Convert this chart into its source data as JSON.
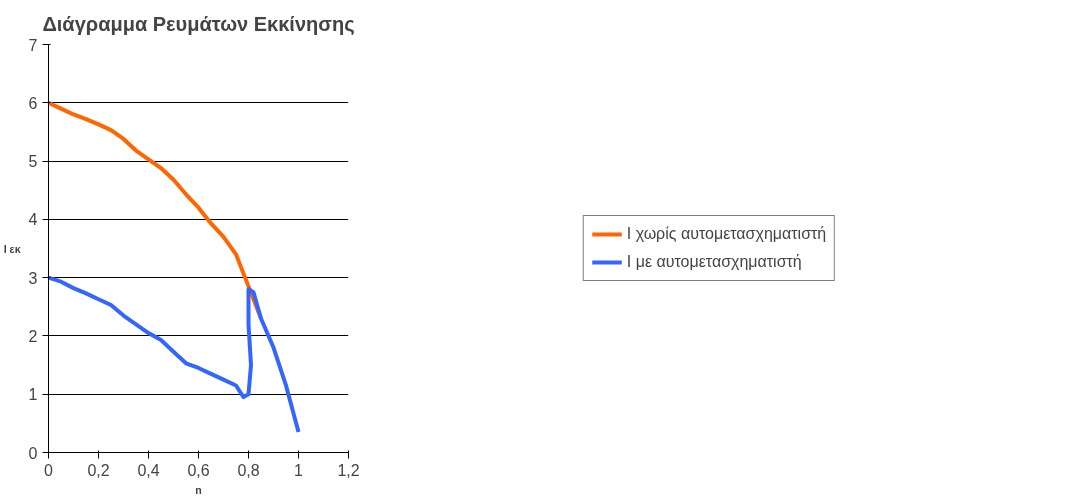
{
  "chart_data": {
    "type": "line",
    "title": "Διάγραμμα Ρευμάτων Εκκίνησης",
    "xlabel": "n",
    "ylabel": "I εκ",
    "xlim": [
      0,
      1.2
    ],
    "xticks": [
      0,
      {
        "value": 0.2,
        "label": "0,2"
      },
      {
        "value": 0.4,
        "label": "0,4"
      },
      {
        "value": 0.6,
        "label": "0,6"
      },
      {
        "value": 0.8,
        "label": "0,8"
      },
      1,
      {
        "value": 1.2,
        "label": "1,2"
      }
    ],
    "ylim": [
      0,
      7
    ],
    "yticks": [
      0,
      1,
      2,
      3,
      4,
      5,
      6,
      7
    ],
    "grid": "y",
    "legend": "right",
    "series": [
      {
        "name": "I χωρίς αυτομετασχηματιστή",
        "color": "#ff6600",
        "x": [
          0,
          0.05,
          0.1,
          0.15,
          0.2,
          0.25,
          0.3,
          0.35,
          0.4,
          0.45,
          0.5,
          0.55,
          0.6,
          0.65,
          0.7,
          0.75,
          0.8,
          0.85
        ],
        "values": [
          6,
          5.9,
          5.8,
          5.72,
          5.63,
          5.53,
          5.38,
          5.18,
          5.03,
          4.88,
          4.68,
          4.43,
          4.2,
          3.93,
          3.7,
          3.4,
          2.85,
          2.3
        ]
      },
      {
        "name": "I με αυτομετασχηματιστή",
        "color": "#3366ff",
        "x": [
          0,
          0.05,
          0.1,
          0.15,
          0.2,
          0.25,
          0.3,
          0.35,
          0.4,
          0.45,
          0.5,
          0.55,
          0.6,
          0.65,
          0.7,
          0.75,
          0.78,
          0.8,
          0.81,
          0.8,
          0.8,
          0.82,
          0.85,
          0.9,
          0.95,
          1
        ],
        "values": [
          3,
          2.93,
          2.82,
          2.73,
          2.63,
          2.53,
          2.35,
          2.2,
          2.05,
          1.93,
          1.73,
          1.53,
          1.45,
          1.35,
          1.25,
          1.15,
          0.95,
          1.0,
          1.5,
          2.2,
          2.8,
          2.75,
          2.3,
          1.8,
          1.15,
          0.35
        ]
      }
    ]
  }
}
